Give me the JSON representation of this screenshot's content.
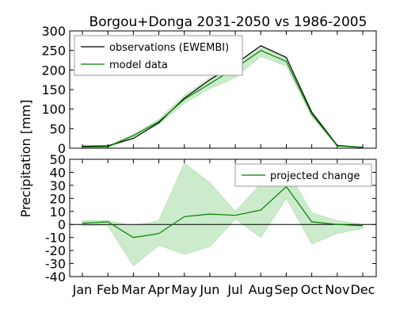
{
  "colors": {
    "observations": "#000000",
    "model": "#008000",
    "band_fill": "#8fd08f",
    "band_stroke": "#b9e2b9"
  },
  "chart_data": {
    "title": "Borgou+Donga 2031-2050 vs 1986-2005",
    "ylabel": "Precipitation [mm]",
    "months": [
      "Jan",
      "Feb",
      "Mar",
      "Apr",
      "May",
      "Jun",
      "Jul",
      "Aug",
      "Sep",
      "Oct",
      "Nov",
      "Dec"
    ],
    "panels": [
      {
        "type": "line",
        "ylim": [
          0,
          300
        ],
        "yticks": [
          0,
          50,
          100,
          150,
          200,
          250,
          300
        ],
        "legend_position": "top-left",
        "series": [
          {
            "name": "observations (EWEMBI)",
            "color": "#000000",
            "values": [
              5,
              6,
              25,
              65,
              128,
              175,
              215,
              262,
              232,
              92,
              7,
              2
            ]
          },
          {
            "name": "model data",
            "color": "#008000",
            "values": [
              3,
              4,
              32,
              68,
              125,
              165,
              205,
              250,
              222,
              87,
              6,
              2
            ],
            "band_low": [
              1,
              1,
              28,
              62,
              115,
              152,
              180,
              235,
              210,
              80,
              4,
              1
            ],
            "band_high": [
              4,
              6,
              36,
              74,
              135,
              180,
              215,
              260,
              232,
              94,
              8,
              3
            ]
          }
        ]
      },
      {
        "type": "line",
        "ylim": [
          -40,
          50
        ],
        "yticks": [
          -40,
          -30,
          -20,
          -10,
          0,
          10,
          20,
          30,
          40,
          50
        ],
        "legend_position": "top-right",
        "series": [
          {
            "name": "projected change",
            "color": "#008000",
            "values": [
              1,
              2,
              -10,
              -7,
              6,
              8,
              7,
              11,
              29,
              2,
              0,
              -1
            ],
            "band_low": [
              -1,
              -1,
              -32,
              -16,
              -23,
              -17,
              4,
              -10,
              20,
              -15,
              -7,
              -3
            ],
            "band_high": [
              3,
              3,
              -1,
              3,
              47,
              32,
              10,
              31,
              43,
              9,
              3,
              0
            ]
          }
        ]
      }
    ]
  }
}
